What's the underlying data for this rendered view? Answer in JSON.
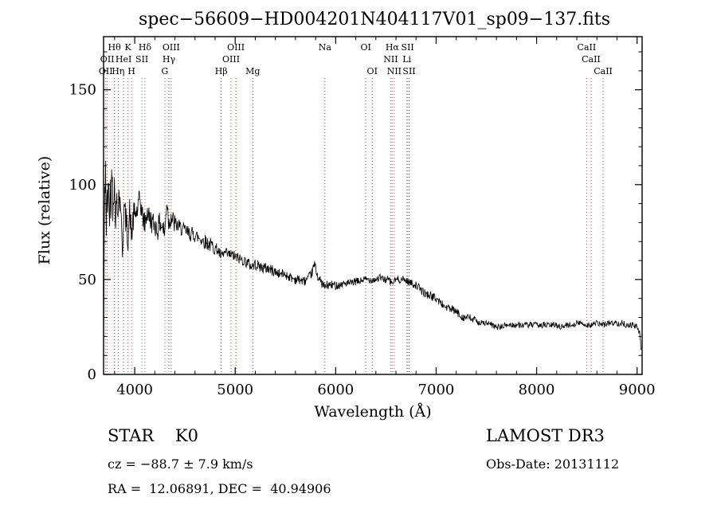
{
  "title": "spec−56609−HD004201N404117V01_sp09−137.fits",
  "annotations": {
    "class_text": "STAR    K0",
    "survey": "LAMOST DR3",
    "cz": "cz = −88.7 ± 7.9 km/s",
    "obs_date": "Obs-Date: 20131112",
    "radec": "RA =  12.06891, DEC =  40.94906"
  },
  "colors": {
    "spectrum": "#000000",
    "marker_line": "#b25555",
    "axis": "#000000",
    "background": "#ffffff"
  },
  "chart_data": {
    "type": "line",
    "title": "spec−56609−HD004201N404117V01_sp09−137.fits",
    "xlabel": "Wavelength (Å)",
    "ylabel": "Flux (relative)",
    "xlim": [
      3690,
      9050
    ],
    "ylim": [
      0,
      178
    ],
    "x_ticks": [
      4000,
      5000,
      6000,
      7000,
      8000,
      9000
    ],
    "y_ticks": [
      0,
      50,
      100,
      150
    ],
    "x_minor_step": 200,
    "y_minor_step": 10,
    "grid": false,
    "legend": "none",
    "noise_seed": 42,
    "noise_segments": [
      [
        3690,
        3800,
        12
      ],
      [
        3800,
        4000,
        8
      ],
      [
        4000,
        4400,
        6
      ],
      [
        4400,
        4800,
        4
      ],
      [
        4800,
        5400,
        3
      ],
      [
        5400,
        6000,
        2.5
      ],
      [
        6000,
        6800,
        2
      ],
      [
        6800,
        7400,
        2.2
      ],
      [
        7400,
        9046,
        1.6
      ]
    ],
    "series": [
      {
        "name": "spectrum",
        "points": [
          [
            3690,
            2
          ],
          [
            3695,
            55
          ],
          [
            3702,
            95
          ],
          [
            3710,
            112
          ],
          [
            3718,
            70
          ],
          [
            3726,
            98
          ],
          [
            3734,
            85
          ],
          [
            3742,
            105
          ],
          [
            3750,
            78
          ],
          [
            3758,
            100
          ],
          [
            3766,
            88
          ],
          [
            3774,
            112
          ],
          [
            3782,
            92
          ],
          [
            3790,
            100
          ],
          [
            3800,
            96
          ],
          [
            3810,
            82
          ],
          [
            3820,
            92
          ],
          [
            3830,
            85
          ],
          [
            3840,
            98
          ],
          [
            3850,
            90
          ],
          [
            3860,
            93
          ],
          [
            3870,
            72
          ],
          [
            3880,
            65
          ],
          [
            3890,
            88
          ],
          [
            3900,
            86
          ],
          [
            3915,
            80
          ],
          [
            3933,
            72
          ],
          [
            3950,
            86
          ],
          [
            3968,
            73
          ],
          [
            3985,
            82
          ],
          [
            4000,
            84
          ],
          [
            4026,
            86
          ],
          [
            4050,
            93
          ],
          [
            4075,
            84
          ],
          [
            4101,
            79
          ],
          [
            4125,
            86
          ],
          [
            4150,
            82
          ],
          [
            4175,
            80
          ],
          [
            4200,
            79
          ],
          [
            4227,
            76
          ],
          [
            4250,
            80
          ],
          [
            4275,
            78
          ],
          [
            4300,
            74
          ],
          [
            4320,
            93
          ],
          [
            4340,
            79
          ],
          [
            4360,
            84
          ],
          [
            4385,
            80
          ],
          [
            4410,
            79
          ],
          [
            4435,
            78
          ],
          [
            4460,
            77
          ],
          [
            4490,
            76
          ],
          [
            4520,
            75
          ],
          [
            4550,
            74
          ],
          [
            4580,
            74
          ],
          [
            4610,
            73
          ],
          [
            4640,
            72
          ],
          [
            4670,
            71
          ],
          [
            4700,
            70
          ],
          [
            4730,
            69
          ],
          [
            4760,
            68
          ],
          [
            4790,
            67
          ],
          [
            4820,
            66
          ],
          [
            4861,
            62
          ],
          [
            4900,
            64
          ],
          [
            4930,
            63
          ],
          [
            4960,
            63
          ],
          [
            5000,
            62
          ],
          [
            5040,
            61
          ],
          [
            5080,
            60
          ],
          [
            5120,
            59
          ],
          [
            5160,
            57
          ],
          [
            5200,
            58
          ],
          [
            5240,
            57
          ],
          [
            5280,
            56
          ],
          [
            5320,
            56
          ],
          [
            5360,
            55
          ],
          [
            5400,
            54
          ],
          [
            5440,
            53
          ],
          [
            5480,
            53
          ],
          [
            5520,
            52
          ],
          [
            5560,
            51
          ],
          [
            5600,
            50
          ],
          [
            5640,
            50
          ],
          [
            5680,
            49
          ],
          [
            5720,
            50
          ],
          [
            5760,
            53
          ],
          [
            5790,
            58
          ],
          [
            5820,
            52
          ],
          [
            5850,
            49
          ],
          [
            5890,
            46
          ],
          [
            5920,
            47
          ],
          [
            5960,
            47
          ],
          [
            6000,
            47
          ],
          [
            6040,
            47
          ],
          [
            6080,
            48
          ],
          [
            6120,
            48
          ],
          [
            6160,
            48
          ],
          [
            6200,
            49
          ],
          [
            6240,
            49
          ],
          [
            6280,
            50
          ],
          [
            6320,
            50
          ],
          [
            6360,
            50
          ],
          [
            6400,
            50
          ],
          [
            6440,
            51
          ],
          [
            6480,
            50
          ],
          [
            6520,
            50
          ],
          [
            6563,
            48
          ],
          [
            6600,
            50
          ],
          [
            6640,
            50
          ],
          [
            6680,
            50
          ],
          [
            6720,
            49
          ],
          [
            6760,
            48
          ],
          [
            6800,
            47
          ],
          [
            6840,
            45
          ],
          [
            6880,
            43
          ],
          [
            6920,
            42
          ],
          [
            6960,
            41
          ],
          [
            7000,
            40
          ],
          [
            7040,
            38
          ],
          [
            7080,
            36
          ],
          [
            7120,
            35
          ],
          [
            7160,
            34
          ],
          [
            7200,
            33
          ],
          [
            7240,
            31
          ],
          [
            7280,
            30
          ],
          [
            7320,
            30
          ],
          [
            7360,
            29
          ],
          [
            7400,
            28
          ],
          [
            7450,
            27
          ],
          [
            7500,
            27
          ],
          [
            7550,
            26
          ],
          [
            7600,
            25
          ],
          [
            7650,
            25
          ],
          [
            7700,
            26
          ],
          [
            7750,
            26
          ],
          [
            7800,
            26
          ],
          [
            7850,
            26
          ],
          [
            7900,
            26
          ],
          [
            7950,
            26
          ],
          [
            8000,
            26
          ],
          [
            8050,
            26
          ],
          [
            8100,
            26
          ],
          [
            8150,
            26
          ],
          [
            8200,
            26
          ],
          [
            8250,
            25
          ],
          [
            8300,
            26
          ],
          [
            8350,
            26
          ],
          [
            8400,
            27
          ],
          [
            8450,
            27
          ],
          [
            8498,
            26
          ],
          [
            8542,
            26
          ],
          [
            8600,
            27
          ],
          [
            8662,
            26
          ],
          [
            8700,
            27
          ],
          [
            8750,
            27
          ],
          [
            8800,
            27
          ],
          [
            8850,
            27
          ],
          [
            8900,
            26
          ],
          [
            8950,
            26
          ],
          [
            9000,
            25
          ],
          [
            9025,
            22
          ],
          [
            9045,
            10
          ]
        ]
      }
    ],
    "spectral_lines": [
      {
        "label": "Hθ",
        "wavelength": 3798,
        "row": 0
      },
      {
        "label": "K",
        "wavelength": 3933,
        "row": 0
      },
      {
        "label": "Hδ",
        "wavelength": 4102,
        "row": 0
      },
      {
        "label": "OIII",
        "wavelength": 4363,
        "row": 0
      },
      {
        "label": "OIII",
        "wavelength": 5007,
        "row": 0
      },
      {
        "label": "Na",
        "wavelength": 5893,
        "row": 0
      },
      {
        "label": "OI",
        "wavelength": 6300,
        "row": 0
      },
      {
        "label": "Hα",
        "wavelength": 6563,
        "row": 0
      },
      {
        "label": "SII",
        "wavelength": 6716,
        "row": 0
      },
      {
        "label": "CaII",
        "wavelength": 8498,
        "row": 0
      },
      {
        "label": "OII",
        "wavelength": 3727,
        "row": 1
      },
      {
        "label": "HeI",
        "wavelength": 3889,
        "row": 1
      },
      {
        "label": "SII",
        "wavelength": 4072,
        "row": 1
      },
      {
        "label": "Hγ",
        "wavelength": 4340,
        "row": 1
      },
      {
        "label": "OIII",
        "wavelength": 4959,
        "row": 1
      },
      {
        "label": "NII",
        "wavelength": 6548,
        "row": 1
      },
      {
        "label": "Li",
        "wavelength": 6708,
        "row": 1
      },
      {
        "label": "CaII",
        "wavelength": 8542,
        "row": 1
      },
      {
        "label": "OII",
        "wavelength": 3712,
        "row": 2
      },
      {
        "label": "Hη",
        "wavelength": 3835,
        "row": 2
      },
      {
        "label": "H",
        "wavelength": 3968,
        "row": 2
      },
      {
        "label": "G",
        "wavelength": 4300,
        "row": 2
      },
      {
        "label": "Hβ",
        "wavelength": 4861,
        "row": 2
      },
      {
        "label": "Mg",
        "wavelength": 5175,
        "row": 2
      },
      {
        "label": "OI",
        "wavelength": 6364,
        "row": 2
      },
      {
        "label": "NII",
        "wavelength": 6583,
        "row": 2
      },
      {
        "label": "SII",
        "wavelength": 6731,
        "row": 2
      },
      {
        "label": "CaII",
        "wavelength": 8662,
        "row": 2
      }
    ]
  }
}
